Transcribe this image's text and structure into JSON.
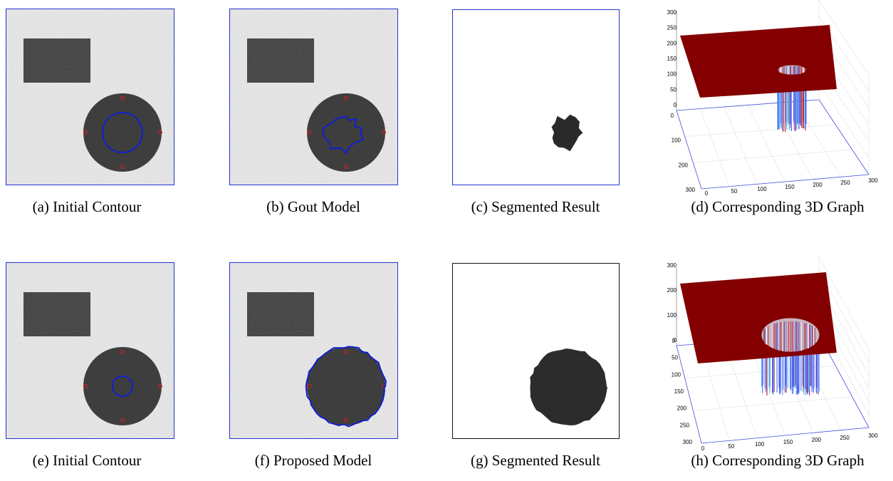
{
  "figure": {
    "captions": [
      "(a) Initial Contour",
      "(b) Gout Model",
      "(c) Segmented Result",
      "(d) Corresponding 3D Graph",
      "(e) Initial Contour",
      "(f) Proposed Model",
      "(g) Segmented Result",
      "(h) Corresponding 3D Graph"
    ],
    "graphs": [
      {
        "z_ticks": [
          300,
          250,
          200,
          150,
          100,
          50,
          0
        ],
        "y_ticks": [
          0,
          100,
          200,
          300
        ],
        "x_ticks": [
          0,
          50,
          100,
          150,
          200,
          250,
          300
        ]
      },
      {
        "z_ticks": [
          300,
          200,
          100,
          0
        ],
        "y_ticks": [
          0,
          50,
          100,
          150,
          200,
          250,
          300
        ],
        "x_ticks": [
          0,
          50,
          100,
          150,
          200,
          250,
          300
        ]
      }
    ]
  }
}
